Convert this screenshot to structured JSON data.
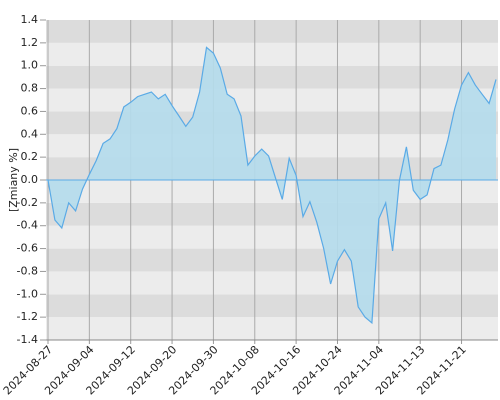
{
  "chart_data": {
    "type": "area",
    "y_label": "[Zmiany %]",
    "categories": [
      "2024-08-27",
      null,
      null,
      null,
      null,
      null,
      "2024-09-04",
      null,
      null,
      null,
      null,
      null,
      "2024-09-12",
      null,
      null,
      null,
      null,
      null,
      "2024-09-20",
      null,
      null,
      null,
      null,
      null,
      "2024-09-30",
      null,
      null,
      null,
      null,
      null,
      "2024-10-08",
      null,
      null,
      null,
      null,
      null,
      "2024-10-16",
      null,
      null,
      null,
      null,
      null,
      "2024-10-24",
      null,
      null,
      null,
      null,
      null,
      "2024-11-04",
      null,
      null,
      null,
      null,
      null,
      "2024-11-13",
      null,
      null,
      null,
      null,
      null,
      "2024-11-21",
      null,
      null,
      null,
      null,
      null
    ],
    "values": [
      0,
      -0.35,
      -0.42,
      -0.2,
      -0.27,
      -0.08,
      0.05,
      0.17,
      0.32,
      0.36,
      0.45,
      0.64,
      0.68,
      0.73,
      0.75,
      0.77,
      0.71,
      0.75,
      0.65,
      0.56,
      0.47,
      0.55,
      0.77,
      1.16,
      1.11,
      0.98,
      0.75,
      0.71,
      0.56,
      0.13,
      0.21,
      0.27,
      0.21,
      0.02,
      -0.17,
      0.19,
      0.04,
      -0.32,
      -0.19,
      -0.37,
      -0.6,
      -0.91,
      -0.71,
      -0.61,
      -0.71,
      -1.11,
      -1.2,
      -1.25,
      -0.34,
      -0.2,
      -0.62,
      0.0,
      0.29,
      -0.09,
      -0.17,
      -0.13,
      0.1,
      0.13,
      0.35,
      0.62,
      0.83,
      0.94,
      0.83,
      0.75,
      0.67,
      0.88
    ],
    "color": "#5aaae6",
    "fill_color": "#b4dcec",
    "ylim": [
      -1.4,
      1.4
    ],
    "yticks": [
      -1.4,
      -1.2,
      {
        "value": -1,
        "label": "-1.0"
      },
      -0.8,
      -0.6,
      -0.4,
      -0.2,
      {
        "value": 0,
        "label": "0.0"
      },
      0.2,
      0.4,
      0.6,
      0.8,
      {
        "value": 1,
        "label": "1.0"
      },
      1.2,
      1.4
    ],
    "band_colors": [
      "#dcdcdc",
      "#ececec"
    ],
    "grid": true
  }
}
